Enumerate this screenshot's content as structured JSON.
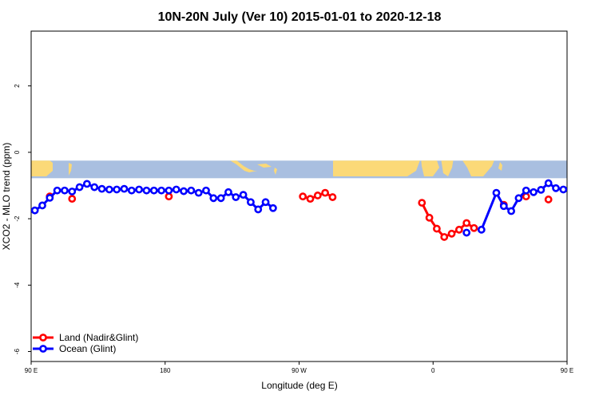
{
  "chart_data": {
    "type": "line",
    "title": "10N-20N July (Ver 10)   2015-01-01 to 2020-12-18",
    "xlabel": "Longitude (deg E)",
    "ylabel": "XCO2 - MLO trend (ppm)",
    "xlim": [
      90,
      450
    ],
    "ylim": [
      -6.3,
      3.65
    ],
    "x_ticks": [
      {
        "value": 90,
        "label": "90 E"
      },
      {
        "value": 180,
        "label": "180"
      },
      {
        "value": 270,
        "label": "90 W"
      },
      {
        "value": 360,
        "label": "0"
      },
      {
        "value": 450,
        "label": "90 E"
      },
      {
        "value": 540,
        "label": "180"
      }
    ],
    "y_ticks": [
      {
        "value": 2,
        "label": "2"
      },
      {
        "value": 0,
        "label": "0"
      },
      {
        "value": -2,
        "label": "-2"
      },
      {
        "value": -4,
        "label": "-4"
      },
      {
        "value": -6,
        "label": "-6"
      }
    ],
    "map_band": {
      "y_top": -0.25,
      "y_bottom": -0.78,
      "ocean_color": "#a9bfe0",
      "land_color": "#fbd978"
    },
    "legend_position": "bottom-left",
    "series": [
      {
        "name": "Land (Nadir&Glint)",
        "color": "#ff0000",
        "segments": [
          [
            [
              102.5,
              -1.33
            ]
          ],
          [
            [
              117.5,
              -1.4
            ]
          ],
          [
            [
              182.5,
              -1.33
            ]
          ],
          [
            [
              272.5,
              -1.33
            ],
            [
              277.5,
              -1.4
            ],
            [
              282.5,
              -1.3
            ],
            [
              287.5,
              -1.22
            ],
            [
              292.5,
              -1.35
            ]
          ],
          [
            [
              352.5,
              -1.52
            ],
            [
              357.5,
              -1.97
            ],
            [
              362.5,
              -2.3
            ],
            [
              367.5,
              -2.55
            ],
            [
              372.5,
              -2.45
            ],
            [
              377.5,
              -2.33
            ],
            [
              382.5,
              -2.13
            ],
            [
              387.5,
              -2.28
            ]
          ],
          [
            [
              407.5,
              -1.58
            ]
          ],
          [
            [
              422.5,
              -1.33
            ]
          ],
          [
            [
              437.5,
              -1.42
            ]
          ]
        ]
      },
      {
        "name": "Ocean (Glint)",
        "color": "#0000ff",
        "segments": [
          [
            [
              92.5,
              -1.75
            ],
            [
              97.5,
              -1.6
            ],
            [
              102.5,
              -1.37
            ],
            [
              107.5,
              -1.15
            ],
            [
              112.5,
              -1.15
            ],
            [
              117.5,
              -1.18
            ],
            [
              122.5,
              -1.05
            ],
            [
              127.5,
              -0.95
            ],
            [
              132.5,
              -1.05
            ],
            [
              137.5,
              -1.1
            ],
            [
              142.5,
              -1.12
            ],
            [
              147.5,
              -1.12
            ],
            [
              152.5,
              -1.1
            ],
            [
              157.5,
              -1.15
            ],
            [
              162.5,
              -1.12
            ],
            [
              167.5,
              -1.15
            ],
            [
              172.5,
              -1.15
            ],
            [
              177.5,
              -1.15
            ],
            [
              182.5,
              -1.15
            ],
            [
              187.5,
              -1.12
            ],
            [
              192.5,
              -1.17
            ],
            [
              197.5,
              -1.15
            ],
            [
              202.5,
              -1.22
            ],
            [
              207.5,
              -1.15
            ],
            [
              212.5,
              -1.38
            ],
            [
              217.5,
              -1.38
            ],
            [
              222.5,
              -1.2
            ],
            [
              227.5,
              -1.35
            ],
            [
              232.5,
              -1.28
            ],
            [
              237.5,
              -1.5
            ],
            [
              242.5,
              -1.72
            ],
            [
              247.5,
              -1.5
            ],
            [
              252.5,
              -1.68
            ]
          ],
          [
            [
              382.5,
              -2.42
            ]
          ],
          [
            [
              392.5,
              -2.33
            ],
            [
              402.5,
              -1.22
            ],
            [
              407.5,
              -1.62
            ],
            [
              412.5,
              -1.77
            ],
            [
              417.5,
              -1.38
            ],
            [
              422.5,
              -1.15
            ],
            [
              427.5,
              -1.2
            ],
            [
              432.5,
              -1.13
            ],
            [
              437.5,
              -0.93
            ],
            [
              442.5,
              -1.08
            ],
            [
              447.5,
              -1.12
            ],
            [
              452.5,
              -1.12
            ]
          ]
        ]
      }
    ]
  }
}
